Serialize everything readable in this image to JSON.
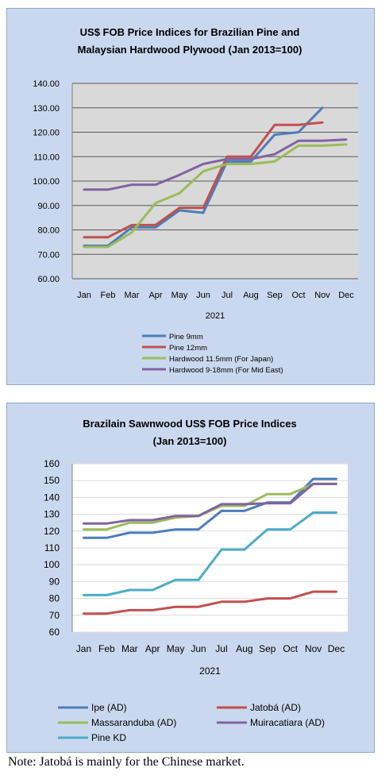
{
  "chart_data": [
    {
      "type": "line",
      "title": "US$ FOB Price Indices for Brazilian Pine and",
      "subtitle": "Malaysian Hardwood Plywood (Jan 2013=100)",
      "xlabel": "2021",
      "ylabel": "",
      "categories": [
        "Jan",
        "Feb",
        "Mar",
        "Apr",
        "May",
        "Jun",
        "Jul",
        "Aug",
        "Sep",
        "Oct",
        "Nov",
        "Dec"
      ],
      "ylim": [
        60,
        140
      ],
      "ytick_step": 10,
      "ytick_decimals": 2,
      "grid": true,
      "legend_position": "bottom",
      "series": [
        {
          "name": "Pine 9mm",
          "color": "#4a7ebb",
          "values": [
            73.5,
            73.5,
            81,
            81,
            88,
            87,
            108,
            108,
            119,
            120,
            130,
            null
          ]
        },
        {
          "name": "Pine 12mm",
          "color": "#c0504d",
          "values": [
            77,
            77,
            82,
            82,
            89,
            89,
            110,
            110,
            123,
            123,
            124,
            null
          ]
        },
        {
          "name": "Hardwood 11.5mm (For Japan)",
          "color": "#9bbb59",
          "values": [
            73,
            73,
            79,
            91,
            95,
            104,
            107,
            107,
            108,
            114.5,
            114.5,
            115
          ]
        },
        {
          "name": "Hardwood 9-18mm (For Mid East)",
          "color": "#8064a2",
          "values": [
            96.5,
            96.5,
            98.5,
            98.5,
            102.5,
            107,
            109,
            109,
            111,
            116.5,
            116.5,
            117
          ]
        }
      ]
    },
    {
      "type": "line",
      "title": "Brazilain Sawnwood US$ FOB Price Indices",
      "subtitle": "(Jan 2013=100)",
      "xlabel": "2021",
      "ylabel": "",
      "categories": [
        "Jan",
        "Feb",
        "Mar",
        "Apr",
        "May",
        "Jun",
        "Jul",
        "Aug",
        "Sep",
        "Oct",
        "Nov",
        "Dec"
      ],
      "ylim": [
        60,
        160
      ],
      "ytick_step": 10,
      "ytick_decimals": 0,
      "grid": true,
      "legend_position": "bottom",
      "series": [
        {
          "name": "Ipe (AD)",
          "color": "#4a7ebb",
          "values": [
            116,
            116,
            119,
            119,
            121,
            121,
            132,
            132,
            137,
            137,
            151,
            151
          ]
        },
        {
          "name": "Jatobá (AD)",
          "color": "#c0504d",
          "values": [
            71,
            71,
            73,
            73,
            75,
            75,
            78,
            78,
            80,
            80,
            84,
            84
          ]
        },
        {
          "name": "Massaranduba (AD)",
          "color": "#9bbb59",
          "values": [
            121,
            121,
            125,
            125,
            128,
            129,
            135,
            135,
            142,
            142,
            148,
            148
          ]
        },
        {
          "name": "Muiracatiara (AD)",
          "color": "#8064a2",
          "values": [
            124.5,
            124.5,
            126.5,
            126.5,
            129,
            129,
            136,
            136,
            136.5,
            136.5,
            148,
            148
          ]
        },
        {
          "name": "Pine KD",
          "color": "#4bacc6",
          "values": [
            82,
            82,
            85,
            85,
            91,
            91,
            109,
            109,
            121,
            121,
            131,
            131
          ]
        }
      ]
    }
  ],
  "note": "Note: Jatobá is mainly for the Chinese market."
}
